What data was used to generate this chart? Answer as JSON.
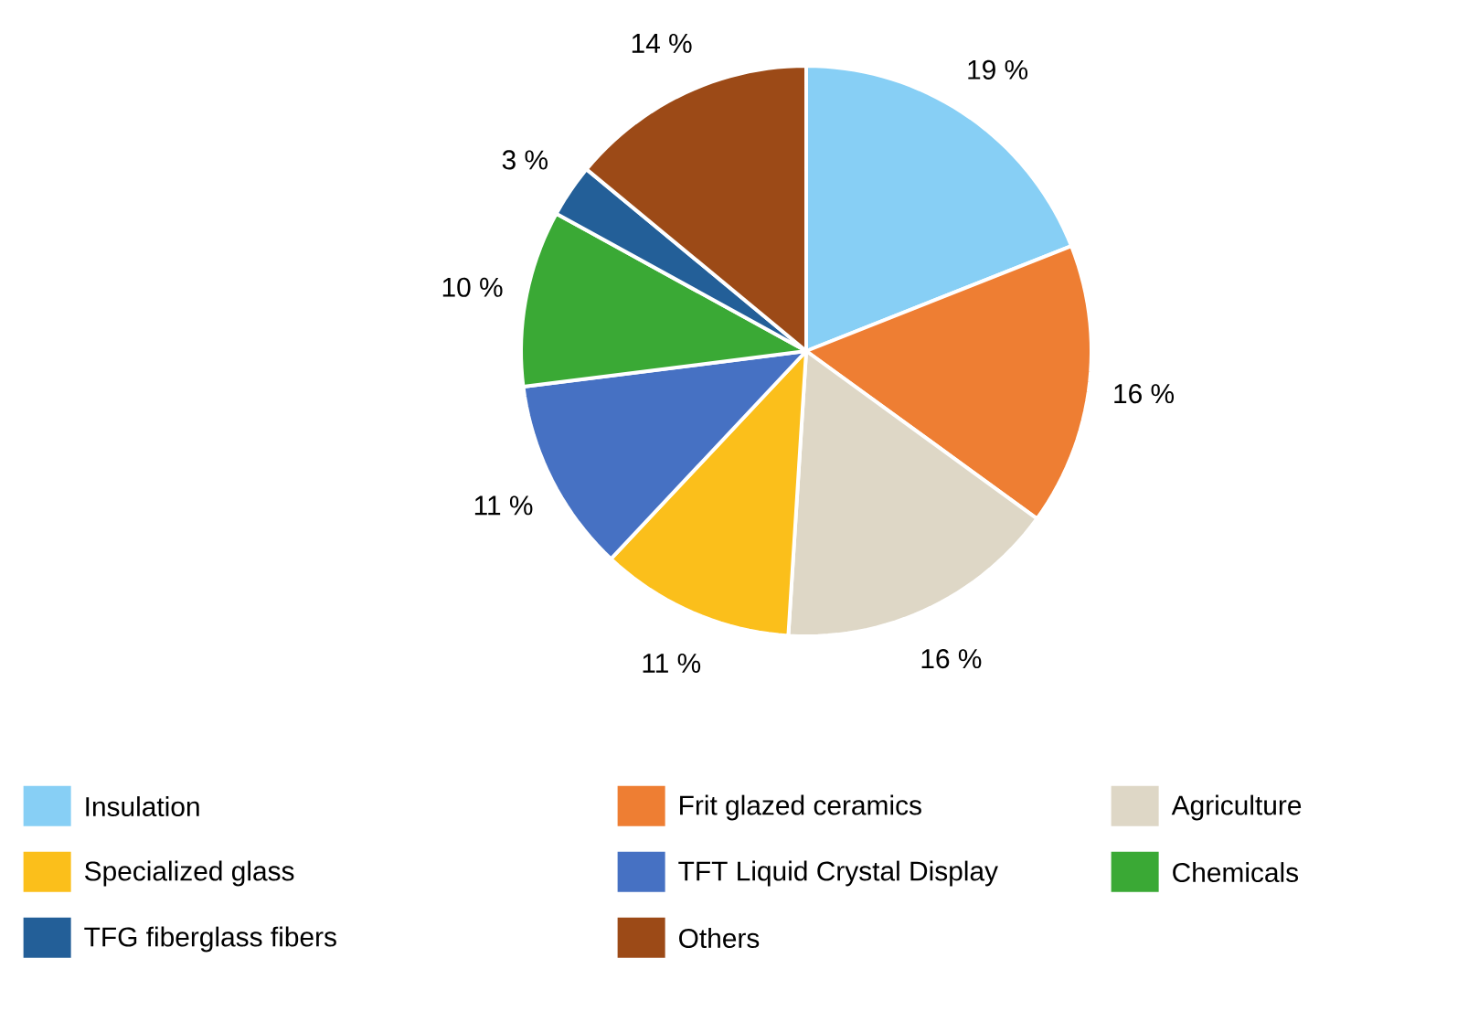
{
  "chart_data": {
    "type": "pie",
    "categories": [
      "Insulation",
      "Frit glazed ceramics",
      "Agriculture",
      "Specialized glass",
      "TFT Liquid Crystal Display",
      "Chemicals",
      "TFG fiberglass fibers",
      "Others"
    ],
    "values": [
      19,
      16,
      16,
      11,
      11,
      10,
      3,
      14
    ],
    "value_labels": [
      "19 %",
      "16 %",
      "16 %",
      "11 %",
      "11 %",
      "10 %",
      "3 %",
      "14 %"
    ],
    "colors": [
      "#87cff5",
      "#ee7e33",
      "#ded7c6",
      "#fbbf1b",
      "#4671c3",
      "#3aa935",
      "#235f98",
      "#9c4a17"
    ],
    "legend": "bottom"
  }
}
